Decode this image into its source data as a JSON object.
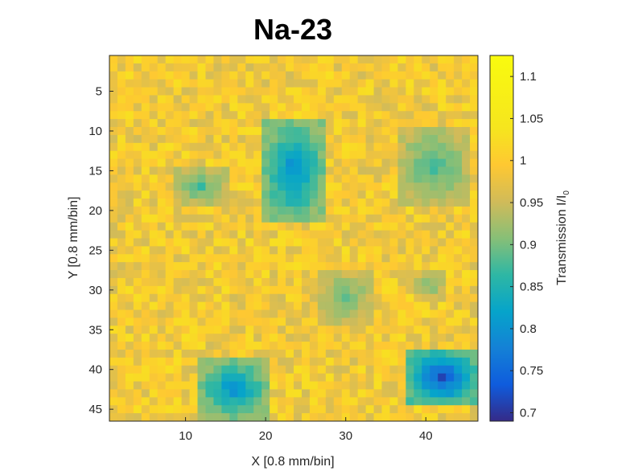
{
  "chart_data": {
    "type": "heatmap",
    "title": "Na-23",
    "xlabel": "X [0.8 mm/bin]",
    "ylabel": "Y [0.8 mm/bin]",
    "colorbar_label": "Transmission I/I",
    "colorbar_label_subscript": "0",
    "grid_cols": 46,
    "grid_rows": 46,
    "x_ticks": [
      10,
      20,
      30,
      40
    ],
    "y_ticks": [
      5,
      10,
      15,
      20,
      25,
      30,
      35,
      40,
      45
    ],
    "colorbar_ticks": [
      0.7,
      0.75,
      0.8,
      0.85,
      0.9,
      0.95,
      1,
      1.05,
      1.1
    ],
    "clim": [
      0.69,
      1.125
    ],
    "colormap": "parula",
    "background_level": 0.99,
    "background_noise": 0.04,
    "regions": [
      {
        "x_range": [
          20,
          27
        ],
        "y_range": [
          9,
          21
        ],
        "min_transmission": 0.79
      },
      {
        "x_range": [
          37,
          45
        ],
        "y_range": [
          10,
          19
        ],
        "min_transmission": 0.87
      },
      {
        "x_range": [
          9,
          15
        ],
        "y_range": [
          15,
          19
        ],
        "min_transmission": 0.88
      },
      {
        "x_range": [
          27,
          33
        ],
        "y_range": [
          28,
          34
        ],
        "min_transmission": 0.89
      },
      {
        "x_range": [
          39,
          42
        ],
        "y_range": [
          28,
          31
        ],
        "min_transmission": 0.9
      },
      {
        "x_range": [
          12,
          20
        ],
        "y_range": [
          39,
          46
        ],
        "min_transmission": 0.8
      },
      {
        "x_range": [
          38,
          46
        ],
        "y_range": [
          38,
          44
        ],
        "min_transmission": 0.72
      }
    ]
  }
}
